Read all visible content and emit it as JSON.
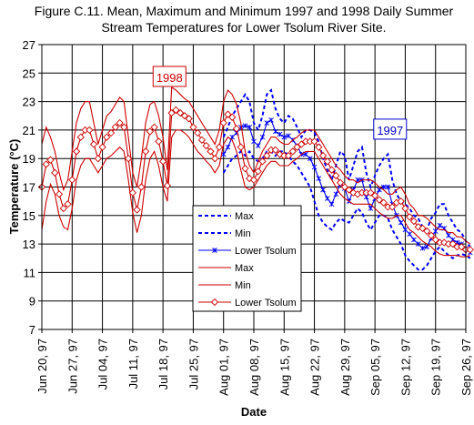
{
  "chart_data": {
    "type": "line",
    "title_line1": "Figure C.11.  Mean, Maximum and Minimum 1997 and 1998 Daily Summer",
    "title_line2": "Stream Temperatures for Lower Tsolum River Site.",
    "xlabel": "Date",
    "ylabel": "Temperature (°C)",
    "ylim": [
      7,
      27
    ],
    "ytick_step": 2,
    "yticks": [
      "7",
      "9",
      "11",
      "13",
      "15",
      "17",
      "19",
      "21",
      "23",
      "25",
      "27"
    ],
    "xticks": [
      "Jun 20, 97",
      "Jun 27, 97",
      "Jul 04, 97",
      "Jul 11, 97",
      "Jul 18, 97",
      "Jul 25, 97",
      "Aug 01, 97",
      "Aug 08, 97",
      "Aug 15, 97",
      "Aug 22, 97",
      "Aug 29, 97",
      "Sep 05, 97",
      "Sep 12, 97",
      "Sep 19, 97",
      "Sep 26, 97"
    ],
    "xtick_day_offsets": [
      0,
      7,
      14,
      21,
      28,
      35,
      42,
      49,
      56,
      63,
      70,
      77,
      84,
      91,
      98
    ],
    "grid": true,
    "annotations": [
      {
        "text": "1998",
        "color": "#cc0000",
        "day": 29.5,
        "temp": 24.7
      },
      {
        "text": "1997",
        "color": "#0000cc",
        "day": 80.5,
        "temp": 21.0
      }
    ],
    "legend": {
      "placement": "center",
      "entries": [
        "Max",
        "Min",
        "Lower Tsolum",
        "Max",
        "Min",
        "Lower Tsolum"
      ]
    },
    "series": [
      {
        "name": "Max",
        "year": "1997",
        "color": "#0000ff",
        "style": "dashed",
        "x": [
          42,
          43,
          44,
          45,
          46,
          47,
          48,
          49,
          50,
          51,
          52,
          53,
          54,
          55,
          56,
          57,
          58,
          59,
          60,
          61,
          62,
          63,
          64,
          65,
          66,
          67,
          68,
          69,
          70,
          71,
          72,
          73,
          74,
          75,
          76,
          77,
          78,
          79,
          80,
          81,
          82,
          83,
          84,
          85,
          86,
          87,
          88,
          89,
          90,
          91,
          92,
          93,
          94,
          95,
          96,
          97,
          98,
          99
        ],
        "y": [
          20.5,
          21.2,
          22.0,
          22.5,
          23.0,
          23.5,
          23.0,
          21.5,
          21.0,
          22.0,
          23.5,
          23.8,
          22.5,
          21.8,
          21.5,
          22.0,
          21.8,
          21.2,
          20.5,
          21.0,
          21.0,
          20.8,
          20.2,
          19.0,
          18.2,
          17.5,
          18.5,
          19.5,
          19.2,
          17.5,
          18.5,
          19.5,
          19.8,
          18.0,
          17.0,
          17.8,
          18.5,
          19.0,
          19.3,
          17.5,
          16.5,
          16.0,
          15.8,
          15.5,
          15.0,
          14.8,
          14.2,
          14.0,
          14.8,
          15.2,
          15.8,
          15.8,
          15.0,
          14.5,
          14.0,
          13.8,
          13.2,
          12.8
        ]
      },
      {
        "name": "Min",
        "year": "1997",
        "color": "#0000ff",
        "style": "dashed",
        "x": [
          42,
          43,
          44,
          45,
          46,
          47,
          48,
          49,
          50,
          51,
          52,
          53,
          54,
          55,
          56,
          57,
          58,
          59,
          60,
          61,
          62,
          63,
          64,
          65,
          66,
          67,
          68,
          69,
          70,
          71,
          72,
          73,
          74,
          75,
          76,
          77,
          78,
          79,
          80,
          81,
          82,
          83,
          84,
          85,
          86,
          87,
          88,
          89,
          90,
          91,
          92,
          93,
          94,
          95,
          96,
          97,
          98,
          99
        ],
        "y": [
          18.0,
          18.5,
          19.0,
          19.2,
          19.5,
          19.2,
          19.5,
          19.0,
          18.8,
          19.0,
          19.5,
          19.5,
          19.2,
          19.5,
          19.5,
          19.2,
          18.8,
          18.5,
          18.0,
          17.5,
          17.0,
          16.0,
          15.0,
          14.5,
          14.2,
          14.0,
          14.5,
          14.8,
          14.6,
          14.5,
          15.0,
          15.5,
          15.2,
          14.5,
          14.0,
          14.5,
          15.0,
          15.0,
          14.8,
          14.0,
          13.5,
          13.0,
          12.2,
          11.8,
          11.5,
          11.2,
          11.2,
          11.5,
          12.0,
          12.5,
          12.8,
          12.5,
          12.2,
          12.0,
          12.2,
          12.3,
          12.2,
          12.0
        ]
      },
      {
        "name": "Lower Tsolum",
        "year": "1997",
        "color": "#0000ff",
        "style": "solid-star",
        "x": [
          42,
          43,
          44,
          45,
          46,
          47,
          48,
          49,
          50,
          51,
          52,
          53,
          54,
          55,
          56,
          57,
          58,
          59,
          60,
          61,
          62,
          63,
          64,
          65,
          66,
          67,
          68,
          69,
          70,
          71,
          72,
          73,
          74,
          75,
          76,
          77,
          78,
          79,
          80,
          81,
          82,
          83,
          84,
          85,
          86,
          87,
          88,
          89,
          90,
          91,
          92,
          93,
          94,
          95,
          96,
          97,
          98,
          99
        ],
        "y": [
          19.3,
          19.8,
          20.5,
          20.8,
          21.2,
          21.3,
          21.2,
          20.2,
          19.9,
          20.5,
          21.5,
          21.7,
          20.9,
          20.7,
          20.5,
          20.6,
          20.3,
          19.9,
          19.3,
          19.3,
          19.0,
          18.4,
          17.6,
          16.8,
          16.2,
          15.8,
          16.5,
          17.2,
          16.9,
          16.0,
          16.8,
          17.5,
          17.5,
          16.3,
          15.5,
          16.2,
          16.8,
          17.0,
          17.0,
          15.8,
          15.0,
          14.5,
          14.0,
          13.7,
          13.3,
          13.0,
          12.7,
          12.8,
          13.4,
          13.9,
          14.3,
          14.1,
          13.6,
          13.3,
          13.1,
          13.0,
          12.7,
          12.4
        ]
      },
      {
        "name": "Max",
        "year": "1998",
        "color": "#cc0000",
        "style": "solid",
        "x": [
          0,
          1,
          2,
          3,
          4,
          5,
          6,
          7,
          8,
          9,
          10,
          11,
          12,
          13,
          14,
          15,
          16,
          17,
          18,
          19,
          20,
          21,
          22,
          23,
          24,
          25,
          26,
          27,
          28,
          29,
          30,
          31,
          32,
          33,
          34,
          35,
          36,
          37,
          38,
          39,
          40,
          41,
          42,
          43,
          44,
          45,
          46,
          47,
          48,
          49,
          50,
          51,
          52,
          53,
          54,
          55,
          56,
          57,
          58,
          59,
          60,
          61,
          62,
          63,
          64,
          65,
          66,
          67,
          68,
          69,
          70,
          71,
          72,
          73,
          74,
          75,
          76,
          77,
          78,
          79,
          80,
          81,
          82,
          83,
          84,
          85,
          86,
          87,
          88,
          89,
          90,
          91,
          92,
          93,
          94,
          95,
          96,
          97,
          98,
          99
        ],
        "y": [
          20.0,
          21.2,
          20.5,
          19.5,
          18.0,
          16.8,
          17.5,
          19.5,
          21.5,
          22.5,
          23.0,
          23.0,
          21.5,
          20.0,
          21.0,
          22.0,
          22.3,
          22.8,
          23.3,
          23.0,
          20.5,
          18.0,
          17.0,
          19.0,
          21.5,
          22.8,
          23.0,
          22.0,
          20.5,
          18.2,
          24.0,
          23.8,
          23.5,
          23.2,
          23.0,
          22.5,
          22.0,
          21.5,
          21.0,
          20.5,
          20.0,
          21.0,
          23.0,
          23.8,
          23.5,
          22.8,
          21.5,
          19.5,
          18.5,
          18.0,
          18.8,
          19.5,
          20.0,
          20.5,
          20.5,
          20.2,
          20.0,
          20.0,
          20.3,
          20.5,
          20.8,
          21.0,
          21.0,
          21.0,
          20.5,
          20.0,
          19.5,
          19.0,
          18.5,
          18.2,
          17.8,
          17.5,
          17.5,
          17.3,
          17.5,
          17.5,
          17.5,
          17.3,
          17.0,
          16.8,
          16.5,
          16.5,
          16.8,
          17.0,
          16.5,
          15.8,
          15.5,
          15.0,
          15.0,
          14.8,
          14.5,
          14.2,
          14.0,
          14.0,
          13.8,
          13.8,
          13.5,
          13.5,
          13.2,
          13.0
        ]
      },
      {
        "name": "Min",
        "year": "1998",
        "color": "#cc0000",
        "style": "solid",
        "x": [
          0,
          1,
          2,
          3,
          4,
          5,
          6,
          7,
          8,
          9,
          10,
          11,
          12,
          13,
          14,
          15,
          16,
          17,
          18,
          19,
          20,
          21,
          22,
          23,
          24,
          25,
          26,
          27,
          28,
          29,
          30,
          31,
          32,
          33,
          34,
          35,
          36,
          37,
          38,
          39,
          40,
          41,
          42,
          43,
          44,
          45,
          46,
          47,
          48,
          49,
          50,
          51,
          52,
          53,
          54,
          55,
          56,
          57,
          58,
          59,
          60,
          61,
          62,
          63,
          64,
          65,
          66,
          67,
          68,
          69,
          70,
          71,
          72,
          73,
          74,
          75,
          76,
          77,
          78,
          79,
          80,
          81,
          82,
          83,
          84,
          85,
          86,
          87,
          88,
          89,
          90,
          91,
          92,
          93,
          94,
          95,
          96,
          97,
          98,
          99
        ],
        "y": [
          14.0,
          16.0,
          17.2,
          16.5,
          15.0,
          14.2,
          14.0,
          15.5,
          17.5,
          18.5,
          19.0,
          19.0,
          18.5,
          18.0,
          18.5,
          19.0,
          19.2,
          19.5,
          19.8,
          19.5,
          17.5,
          15.2,
          13.8,
          15.0,
          17.5,
          19.0,
          19.5,
          18.5,
          17.0,
          16.0,
          20.5,
          21.0,
          21.0,
          20.8,
          20.5,
          20.0,
          19.5,
          19.2,
          18.8,
          18.5,
          18.0,
          18.5,
          20.0,
          20.5,
          20.3,
          19.5,
          18.2,
          17.0,
          16.8,
          17.0,
          17.5,
          18.0,
          18.5,
          18.8,
          18.8,
          18.5,
          18.5,
          18.5,
          18.8,
          19.0,
          19.3,
          19.5,
          19.5,
          19.5,
          19.0,
          18.5,
          18.0,
          17.5,
          17.0,
          16.5,
          16.2,
          16.0,
          15.8,
          15.8,
          15.8,
          15.8,
          15.8,
          15.5,
          15.2,
          15.0,
          14.8,
          14.8,
          15.0,
          15.0,
          14.5,
          14.0,
          13.8,
          13.5,
          13.2,
          13.0,
          12.8,
          12.5,
          12.3,
          12.2,
          12.2,
          12.2,
          12.2,
          12.1,
          12.1,
          12.2
        ]
      },
      {
        "name": "Lower Tsolum",
        "year": "1998",
        "color": "#cc0000",
        "style": "solid-diamond",
        "x": [
          0,
          1,
          2,
          3,
          4,
          5,
          6,
          7,
          8,
          9,
          10,
          11,
          12,
          13,
          14,
          15,
          16,
          17,
          18,
          19,
          20,
          21,
          22,
          23,
          24,
          25,
          26,
          27,
          28,
          29,
          30,
          31,
          32,
          33,
          34,
          35,
          36,
          37,
          38,
          39,
          40,
          41,
          42,
          43,
          44,
          45,
          46,
          47,
          48,
          49,
          50,
          51,
          52,
          53,
          54,
          55,
          56,
          57,
          58,
          59,
          60,
          61,
          62,
          63,
          64,
          65,
          66,
          67,
          68,
          69,
          70,
          71,
          72,
          73,
          74,
          75,
          76,
          77,
          78,
          79,
          80,
          81,
          82,
          83,
          84,
          85,
          86,
          87,
          88,
          89,
          90,
          91,
          92,
          93,
          94,
          95,
          96,
          97,
          98,
          99
        ],
        "y": [
          17.0,
          18.6,
          18.9,
          18.0,
          16.5,
          15.5,
          15.8,
          17.5,
          19.5,
          20.5,
          21.0,
          21.0,
          20.0,
          19.0,
          19.8,
          20.5,
          20.8,
          21.2,
          21.5,
          21.2,
          19.0,
          16.6,
          15.4,
          17.0,
          19.5,
          20.9,
          21.2,
          20.2,
          18.8,
          17.1,
          22.2,
          22.4,
          22.2,
          22.0,
          21.8,
          21.2,
          20.8,
          20.3,
          19.9,
          19.5,
          19.0,
          19.8,
          21.5,
          22.1,
          21.9,
          21.1,
          19.8,
          18.3,
          17.6,
          17.5,
          18.1,
          18.8,
          19.2,
          19.6,
          19.6,
          19.3,
          19.2,
          19.2,
          19.5,
          19.8,
          20.0,
          20.2,
          20.2,
          20.2,
          19.8,
          19.2,
          18.8,
          18.2,
          17.8,
          17.3,
          17.0,
          16.8,
          16.6,
          16.5,
          16.6,
          16.6,
          16.6,
          16.4,
          16.1,
          15.9,
          15.6,
          15.6,
          15.9,
          16.0,
          15.5,
          14.9,
          14.6,
          14.2,
          14.1,
          13.9,
          13.6,
          13.3,
          13.1,
          13.1,
          13.0,
          13.0,
          12.8,
          12.8,
          12.6,
          12.6
        ]
      }
    ]
  }
}
